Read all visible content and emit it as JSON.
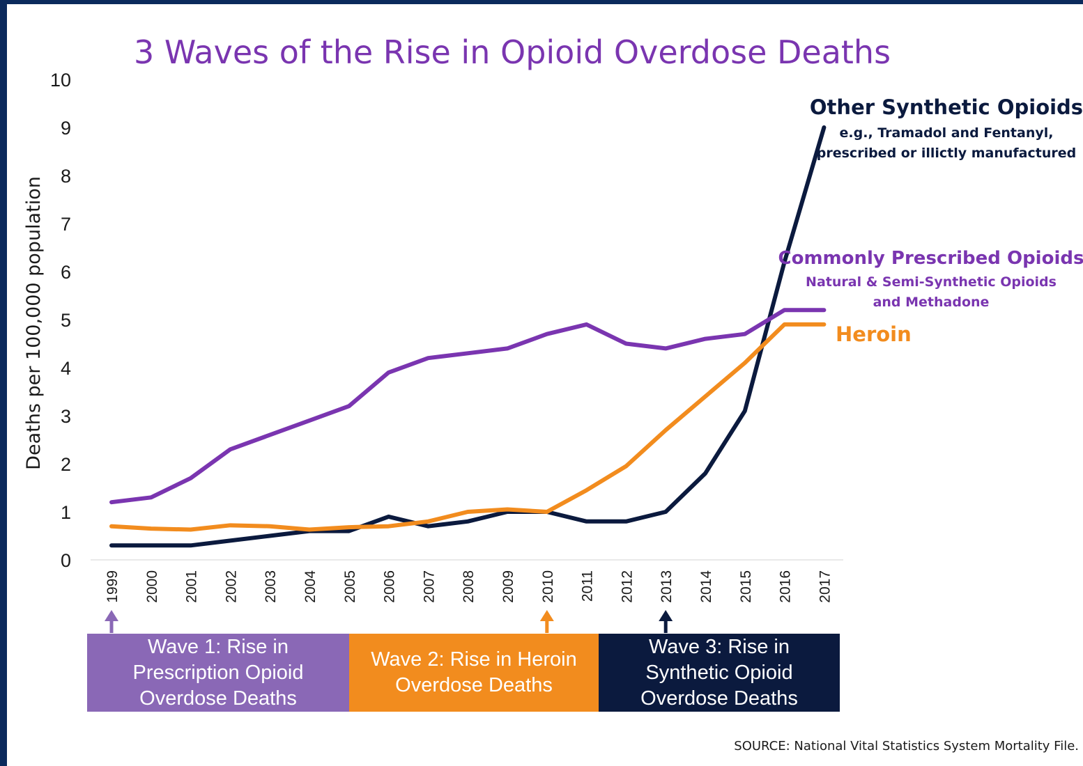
{
  "chart_data": {
    "type": "line",
    "title": "3 Waves of the Rise in Opioid Overdose Deaths",
    "ylabel": "Deaths per 100,000 population",
    "xlabel": "",
    "ylim": [
      0,
      10
    ],
    "yticks": [
      "0",
      "1",
      "2",
      "3",
      "4",
      "5",
      "6",
      "7",
      "8",
      "9",
      "10"
    ],
    "categories": [
      "1999",
      "2000",
      "2001",
      "2002",
      "2003",
      "2004",
      "2005",
      "2006",
      "2007",
      "2008",
      "2009",
      "2010",
      "2011",
      "2012",
      "2013",
      "2014",
      "2015",
      "2016",
      "2017"
    ],
    "grid": false,
    "series": [
      {
        "name": "Commonly Prescribed Opioids",
        "sublabel_1": "Natural & Semi-Synthetic Opioids",
        "sublabel_2": "and Methadone",
        "color": "#7a35b0",
        "values": [
          1.2,
          1.3,
          1.7,
          2.3,
          2.6,
          2.9,
          3.2,
          3.9,
          4.2,
          4.3,
          4.4,
          4.7,
          4.9,
          4.5,
          4.4,
          4.6,
          4.7,
          5.2,
          5.2
        ]
      },
      {
        "name": "Heroin",
        "color": "#f28c1e",
        "values": [
          0.7,
          0.65,
          0.63,
          0.72,
          0.7,
          0.63,
          0.68,
          0.7,
          0.8,
          1.0,
          1.05,
          1.0,
          1.45,
          1.95,
          2.7,
          3.4,
          4.1,
          4.9,
          4.9
        ]
      },
      {
        "name": "Other Synthetic Opioids",
        "sublabel_1": "e.g., Tramadol and Fentanyl,",
        "sublabel_2": "prescribed or illictly manufactured",
        "color": "#0b1a3e",
        "values": [
          0.3,
          0.3,
          0.3,
          0.4,
          0.5,
          0.6,
          0.6,
          0.9,
          0.7,
          0.8,
          1.0,
          1.0,
          0.8,
          0.8,
          1.0,
          1.8,
          3.1,
          6.2,
          9.0
        ]
      }
    ],
    "waves": [
      {
        "label": "Wave 1: Rise in Prescription Opioid Overdose Deaths",
        "start_year": "1999",
        "color": "#8a68b6"
      },
      {
        "label": "Wave 2: Rise in Heroin Overdose Deaths",
        "start_year": "2010",
        "color": "#f28c1e"
      },
      {
        "label": "Wave 3: Rise in Synthetic Opioid Overdose Deaths",
        "start_year": "2013",
        "color": "#0b1a3e"
      }
    ],
    "source": "SOURCE: National Vital Statistics System Mortality File."
  }
}
